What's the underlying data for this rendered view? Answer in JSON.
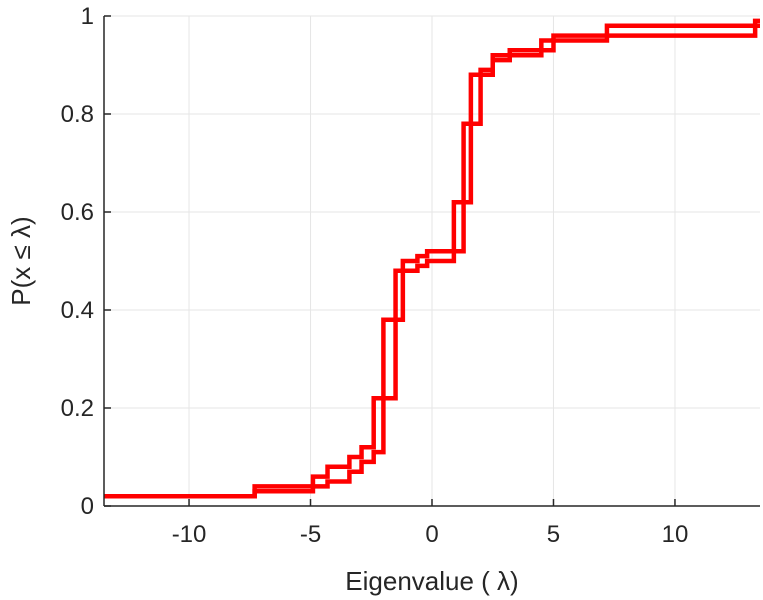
{
  "chart_data": {
    "type": "line",
    "title": "",
    "xlabel": "Eigenvalue (   λ)",
    "ylabel": "P(x ≤ λ)",
    "xlim": [
      -13.5,
      13.5
    ],
    "ylim": [
      0,
      1
    ],
    "xticks": [
      -10,
      -5,
      0,
      5,
      10
    ],
    "xtick_labels": [
      "-10",
      "-5",
      "0",
      "5",
      "10"
    ],
    "yticks": [
      0,
      0.2,
      0.4,
      0.6,
      0.8,
      1
    ],
    "ytick_labels": [
      "0",
      "0.2",
      "0.4",
      "0.6",
      "0.8",
      "1"
    ],
    "grid": true,
    "line_color": "#ff0000",
    "series": [
      {
        "x": [
          -13.5,
          -7.3,
          -4.9,
          -4.3,
          -3.4,
          -2.9,
          -2.4,
          -2.0,
          -1.5,
          -1.2,
          -0.6,
          -0.2,
          0.9,
          1.3,
          1.6,
          2.0,
          2.5,
          3.2,
          4.5,
          5.0,
          7.2,
          13.3
        ],
        "y": [
          0.02,
          0.04,
          0.06,
          0.08,
          0.1,
          0.12,
          0.22,
          0.38,
          0.48,
          0.5,
          0.51,
          0.52,
          0.62,
          0.78,
          0.88,
          0.89,
          0.92,
          0.93,
          0.95,
          0.96,
          0.98,
          0.99
        ]
      },
      {
        "x": [
          -13.5,
          -7.3,
          -4.9,
          -4.3,
          -3.4,
          -2.9,
          -2.4,
          -2.0,
          -1.5,
          -1.2,
          -0.6,
          -0.2,
          0.9,
          1.3,
          1.6,
          2.0,
          2.5,
          3.2,
          4.5,
          5.0,
          7.2,
          13.3
        ],
        "y": [
          0.02,
          0.03,
          0.04,
          0.05,
          0.07,
          0.09,
          0.11,
          0.22,
          0.38,
          0.48,
          0.49,
          0.5,
          0.52,
          0.62,
          0.78,
          0.88,
          0.91,
          0.92,
          0.93,
          0.95,
          0.96,
          0.98
        ]
      }
    ]
  }
}
